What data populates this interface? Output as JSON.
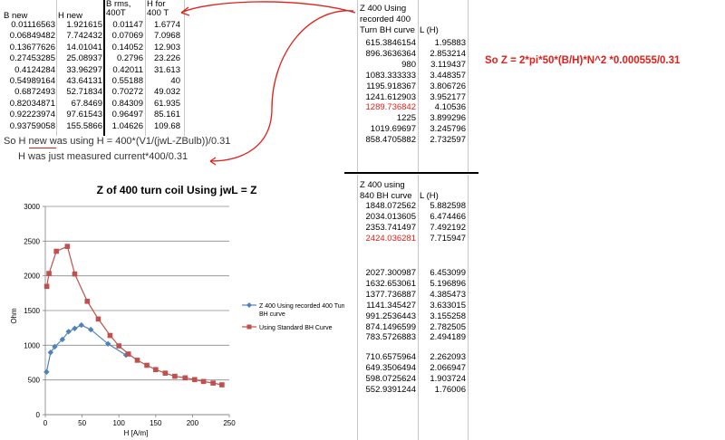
{
  "left_table": {
    "headers": [
      "B new",
      "H new",
      "B rms, 400T",
      "H for 400 T"
    ],
    "rows": [
      [
        "0.01116563",
        "1.921615",
        "0.01147",
        "1.6774"
      ],
      [
        "0.06849482",
        "7.742432",
        "0.07069",
        "7.0968"
      ],
      [
        "0.13677626",
        "14.01041",
        "0.14052",
        "12.903"
      ],
      [
        "0.27453285",
        "25.08937",
        "0.2796",
        "23.226"
      ],
      [
        "0.4124284",
        "33.96297",
        "0.42011",
        "31.613"
      ],
      [
        "0.54989164",
        "43.64131",
        "0.55188",
        "40"
      ],
      [
        "0.6872493",
        "52.71834",
        "0.70272",
        "49.032"
      ],
      [
        "0.82034871",
        "67.8469",
        "0.84309",
        "61.935"
      ],
      [
        "0.92223974",
        "97.61543",
        "0.96497",
        "85.161"
      ],
      [
        "0.93759058",
        "155.5866",
        "1.04626",
        "109.68"
      ]
    ]
  },
  "notes": {
    "h_new": "So H new was using H = 400*(V1/(jwL-ZBulb))/0.31",
    "h_measured": "H was just measured current*400/0.31"
  },
  "formula": "So Z = 2*pi*50*(B/H)*N^2 *0.000555/0.31",
  "right_table_top": {
    "header_z": [
      "Z 400 Using",
      "recorded 400",
      "Turn BH curve"
    ],
    "header_l": "L (H)",
    "rows": [
      [
        "615.3846154",
        "1.95883"
      ],
      [
        "896.3636364",
        "2.853214"
      ],
      [
        "980",
        "3.119437"
      ],
      [
        "1083.333333",
        "3.448357"
      ],
      [
        "1195.918367",
        "3.806726"
      ],
      [
        "1241.612903",
        "3.952177"
      ],
      [
        "1289.736842",
        "4.10536"
      ],
      [
        "1225",
        "3.899296"
      ],
      [
        "1019.69697",
        "3.245796"
      ],
      [
        "858.4705882",
        "2.732597"
      ]
    ],
    "highlight_row": 6
  },
  "right_table_bottom": {
    "header_z": [
      "Z 400 using",
      "840 BH curve"
    ],
    "header_l": "L (H)",
    "groups": [
      [
        [
          "1848.072562",
          "5.882598"
        ],
        [
          "2034.013605",
          "6.474466"
        ],
        [
          "2353.741497",
          "7.492192"
        ],
        [
          "2424.036281",
          "7.715947"
        ]
      ],
      [
        [
          "2027.300987",
          "6.453099"
        ],
        [
          "1632.653061",
          "5.196896"
        ],
        [
          "1377.736887",
          "4.385473"
        ],
        [
          "1141.345427",
          "3.633015"
        ],
        [
          "991.2536443",
          "3.155258"
        ],
        [
          "874.1496599",
          "2.782505"
        ],
        [
          "783.5726883",
          "2.494189"
        ]
      ],
      [
        [
          "710.6575964",
          "2.262093"
        ],
        [
          "649.3506494",
          "2.066947"
        ],
        [
          "598.0725624",
          "1.903724"
        ],
        [
          "552.9391244",
          "1.76006"
        ]
      ]
    ],
    "highlight": "2424.036281"
  },
  "chart_data": {
    "type": "line",
    "title": "Z of 400 turn coil Using jwL = Z",
    "xlabel": "H [A/m]",
    "ylabel": "Ohm",
    "xlim": [
      0,
      250
    ],
    "ylim": [
      0,
      3000
    ],
    "xticks": [
      0,
      50,
      100,
      150,
      200,
      250
    ],
    "yticks": [
      0,
      500,
      1000,
      1500,
      2000,
      2500,
      3000
    ],
    "grid": "horizontal",
    "legend_position": "right",
    "series": [
      {
        "name": "Z 400 Using recorded 400 Turn BH curve",
        "color": "#4f81bd",
        "marker": "diamond",
        "points": [
          [
            1.7,
            615
          ],
          [
            7.1,
            896
          ],
          [
            12.9,
            980
          ],
          [
            23.2,
            1083
          ],
          [
            31.6,
            1196
          ],
          [
            40,
            1242
          ],
          [
            49,
            1290
          ],
          [
            61.9,
            1225
          ],
          [
            85.2,
            1020
          ],
          [
            109.7,
            858
          ]
        ]
      },
      {
        "name": "Using Standard BH Curve",
        "color": "#c0504d",
        "marker": "square",
        "points": [
          [
            2,
            1848
          ],
          [
            5,
            2034
          ],
          [
            15,
            2354
          ],
          [
            30,
            2424
          ],
          [
            40,
            2027
          ],
          [
            57,
            1633
          ],
          [
            72,
            1378
          ],
          [
            88,
            1141
          ],
          [
            100,
            991
          ],
          [
            113,
            874
          ],
          [
            125,
            784
          ],
          [
            138,
            711
          ],
          [
            150,
            649
          ],
          [
            163,
            598
          ],
          [
            176,
            553
          ],
          [
            190,
            530
          ],
          [
            203,
            505
          ],
          [
            215,
            478
          ],
          [
            228,
            455
          ],
          [
            240,
            430
          ]
        ]
      }
    ]
  }
}
